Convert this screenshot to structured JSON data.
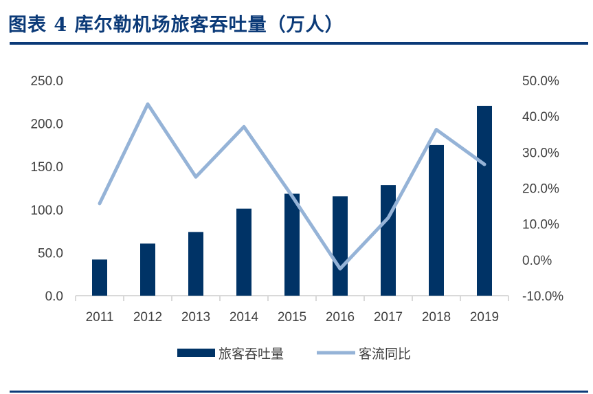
{
  "title": "图表 4   库尔勒机场旅客吞吐量（万人）",
  "chart_data": {
    "type": "bar+line",
    "categories": [
      "2011",
      "2012",
      "2013",
      "2014",
      "2015",
      "2016",
      "2017",
      "2018",
      "2019"
    ],
    "series": [
      {
        "name": "旅客吞吐量",
        "type": "bar",
        "axis": "left",
        "color": "#003366",
        "values": [
          42.0,
          60.5,
          74.0,
          101.0,
          118.5,
          115.5,
          128.5,
          175.0,
          220.5
        ]
      },
      {
        "name": "客流同比",
        "type": "line",
        "axis": "right",
        "color": "#95b3d7",
        "values": [
          15.7,
          43.4,
          23.1,
          37.1,
          17.8,
          -2.5,
          11.7,
          36.3,
          26.6
        ]
      }
    ],
    "left_axis": {
      "ylim": [
        0,
        250
      ],
      "ticks": [
        "0.0",
        "50.0",
        "100.0",
        "150.0",
        "200.0",
        "250.0"
      ]
    },
    "right_axis": {
      "ylim": [
        -10,
        50
      ],
      "unit": "%",
      "ticks": [
        "-10.0%",
        "0.0%",
        "10.0%",
        "20.0%",
        "30.0%",
        "40.0%",
        "50.0%"
      ]
    },
    "grid": false,
    "legend": "bottom"
  }
}
